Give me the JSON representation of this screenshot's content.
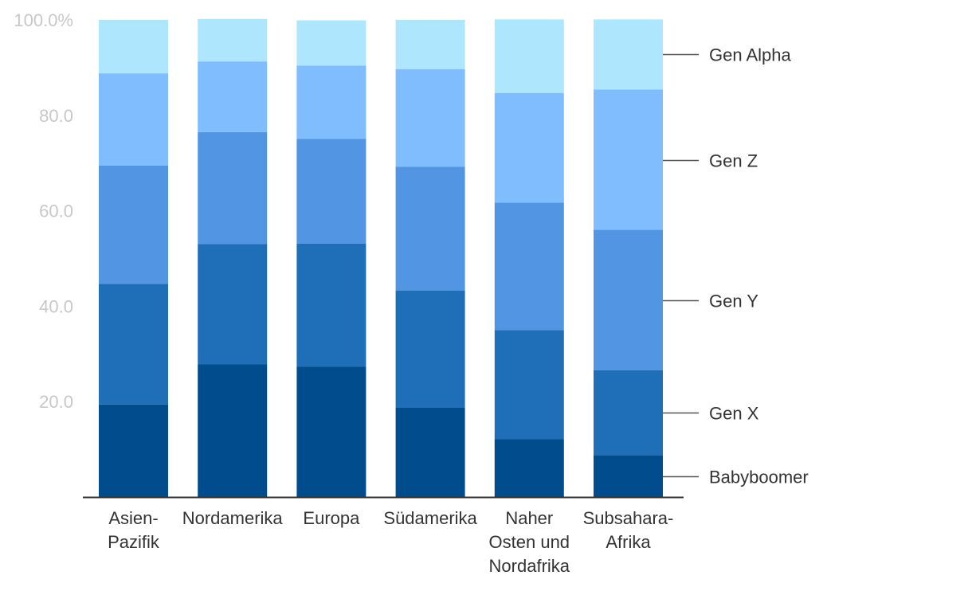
{
  "chart_data": {
    "type": "bar",
    "stacked": true,
    "categories": [
      [
        "Asien-",
        "Pazifik"
      ],
      [
        "Nordamerika"
      ],
      [
        "Europa"
      ],
      [
        "Südamerika"
      ],
      [
        "Naher",
        "Osten und",
        "Nordafrika"
      ],
      [
        "Subsahara-",
        "Afrika"
      ]
    ],
    "series": [
      {
        "name": "Babyboomer",
        "color": "#004c8c",
        "values": [
          19.4,
          27.8,
          27.3,
          18.7,
          12.1,
          8.8
        ]
      },
      {
        "name": "Gen X",
        "color": "#1f6fb8",
        "values": [
          25.3,
          25.2,
          25.8,
          24.6,
          22.9,
          17.8
        ]
      },
      {
        "name": "Gen Y",
        "color": "#5295e2",
        "values": [
          24.8,
          23.5,
          22.0,
          25.9,
          26.7,
          29.4
        ]
      },
      {
        "name": "Gen Z",
        "color": "#80bdff",
        "values": [
          19.3,
          14.8,
          15.3,
          20.5,
          23.0,
          29.4
        ]
      },
      {
        "name": "Gen Alpha",
        "color": "#ade6fd",
        "values": [
          11.2,
          8.9,
          9.5,
          10.3,
          15.4,
          14.7
        ]
      }
    ],
    "yticks": [
      {
        "value": 20,
        "label": "20.0"
      },
      {
        "value": 40,
        "label": "40.0"
      },
      {
        "value": 60,
        "label": "60.0"
      },
      {
        "value": 80,
        "label": "80.0"
      },
      {
        "value": 100,
        "label": "100.0%"
      }
    ],
    "ylim": [
      0,
      100
    ],
    "grid": false,
    "legend": "right"
  }
}
